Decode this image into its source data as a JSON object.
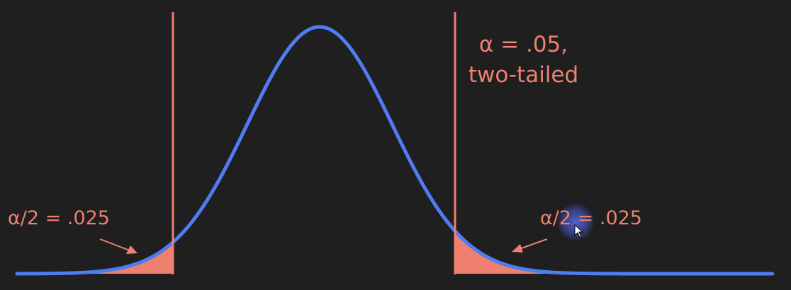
{
  "diagram": {
    "type": "normal-distribution-two-tailed",
    "colors": {
      "background": "#1f1f1f",
      "curve": "#4f7cf0",
      "accent": "#ef7f6f"
    },
    "alpha_label_line1": "α = .05,",
    "alpha_label_line2": "two-tailed",
    "left_tail_label": "α/2 = .025",
    "right_tail_label": "α/2 = .025"
  },
  "cursor": {
    "icon": "mouse-pointer-icon",
    "highlight": "cursor-highlight"
  }
}
